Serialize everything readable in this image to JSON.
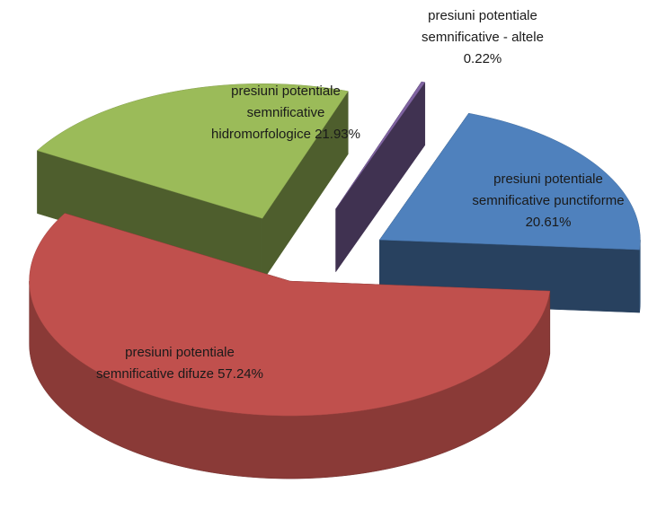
{
  "chart_data": {
    "type": "pie",
    "categories": [
      "presiuni potentiale semnificative punctiforme",
      "presiuni potentiale semnificative difuze",
      "presiuni potentiale semnificative hidromorfologice",
      "presiuni potentiale semnificative - altele"
    ],
    "values": [
      20.61,
      57.24,
      21.93,
      0.22
    ],
    "value_labels": [
      "20.61%",
      "57.24%",
      "21.93%",
      "0.22%"
    ],
    "colors": [
      "#4f81bd",
      "#c0504d",
      "#9bbb59",
      "#8064a2"
    ],
    "legend": false
  }
}
